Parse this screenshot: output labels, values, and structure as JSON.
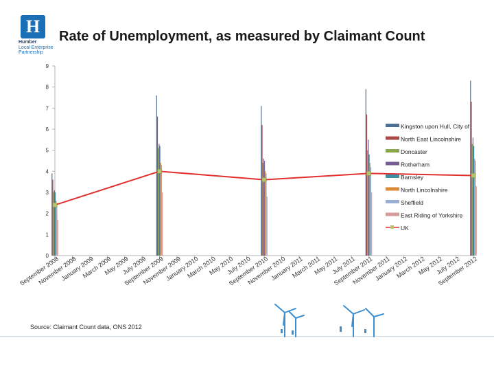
{
  "logo": {
    "letter": "H",
    "lines": [
      "Humber",
      "Local Enterprise",
      "Partnership"
    ]
  },
  "title": "Rate of Unemployment, as measured by Claimant Count",
  "source": "Source: Claimant Count data, ONS 2012",
  "chart_data": {
    "type": "line",
    "title": "Rate of Unemployment, as measured by Claimant Count",
    "xlabel": "",
    "ylabel": "",
    "ylim": [
      0,
      9
    ],
    "yticks": [
      0,
      1,
      2,
      3,
      4,
      5,
      6,
      7,
      8,
      9
    ],
    "categories": [
      "September 2008",
      "November 2008",
      "January 2009",
      "March 2009",
      "May 2009",
      "July 2009",
      "September 2009",
      "November 2009",
      "January 2010",
      "March 2010",
      "May 2010",
      "July 2010",
      "September 2010",
      "November 2010",
      "January 2011",
      "March 2011",
      "May 2011",
      "July 2011",
      "September 2011",
      "November 2011",
      "January 2012",
      "March 2012",
      "May 2012",
      "July 2012",
      "September 2012"
    ],
    "tick_labels": [
      "September 2008",
      "November 2008",
      "January 2009",
      "March 2009",
      "May 2009",
      "July 2009",
      "September 2009",
      "November 2009",
      "January 2010",
      "March 2010",
      "May 2010",
      "July 2010",
      "September 2010",
      "November 2010",
      "January 2011",
      "March 2011",
      "May 2011",
      "July 2011",
      "September 2011",
      "November 2011",
      "January 2012",
      "March 2012",
      "May 2012",
      "July 2012",
      "September 2012"
    ],
    "bar_series": [
      {
        "name": "Kingston upon Hull, City of",
        "color": "#4f6f93",
        "values": [
          3.9,
          7.6,
          7.1,
          7.9,
          8.3
        ]
      },
      {
        "name": "North East Lincolnshire",
        "color": "#a84b48",
        "values": [
          3.6,
          6.6,
          6.2,
          6.7,
          7.3
        ]
      },
      {
        "name": "Doncaster",
        "color": "#8aa64f",
        "values": [
          3.0,
          5.1,
          4.4,
          5.0,
          5.3
        ]
      },
      {
        "name": "Rotherham",
        "color": "#7a5c94",
        "values": [
          3.1,
          5.3,
          4.6,
          5.5,
          5.6
        ]
      },
      {
        "name": "Barnsley",
        "color": "#3d8ea5",
        "values": [
          3.0,
          5.2,
          4.5,
          4.8,
          5.2
        ]
      },
      {
        "name": "North Lincolnshire",
        "color": "#de8a3b",
        "values": [
          2.6,
          4.4,
          4.0,
          4.4,
          4.6
        ]
      },
      {
        "name": "Sheffield",
        "color": "#98afd3",
        "values": [
          2.5,
          4.3,
          3.9,
          4.2,
          4.5
        ]
      },
      {
        "name": "East Riding of Yorkshire",
        "color": "#d69b9a",
        "values": [
          1.7,
          3.0,
          2.8,
          3.0,
          3.3
        ]
      }
    ],
    "bar_positions": [
      0,
      6,
      12,
      18,
      24
    ],
    "line_series": {
      "name": "UK",
      "color": "#e03030",
      "marker_color": "#b5c56a",
      "x_index": [
        0,
        6,
        12,
        18,
        24
      ],
      "values": [
        2.4,
        4.0,
        3.6,
        3.9,
        3.8
      ]
    },
    "legend_position": "right"
  }
}
